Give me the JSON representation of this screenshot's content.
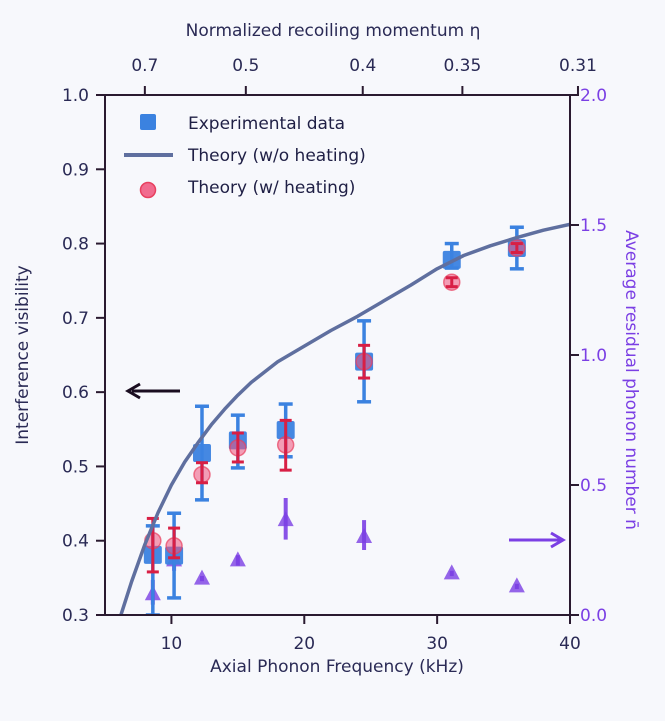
{
  "chart_data": {
    "type": "scatter",
    "title": "",
    "xlabel": "Axial Phonon Frequency (kHz)",
    "ylabel": "Interference visibility",
    "ylabel_right": "Average residual phonon number n̄",
    "xlabel_top": "Normalized recoiling momentum η",
    "xlim": [
      5,
      40
    ],
    "ylim": [
      0.3,
      1.0
    ],
    "ylim_right": [
      0.0,
      2.0
    ],
    "x_ticks": [
      10,
      20,
      30,
      40
    ],
    "x_tick_labels": [
      "10",
      "20",
      "30",
      "40"
    ],
    "y_ticks": [
      0.3,
      0.4,
      0.5,
      0.6,
      0.7,
      0.8,
      0.9,
      1.0
    ],
    "y_tick_labels": [
      "0.3",
      "0.4",
      "0.5",
      "0.6",
      "0.7",
      "0.8",
      "0.9",
      "1.0"
    ],
    "y_right_ticks": [
      0.0,
      0.5,
      1.0,
      1.5,
      2.0
    ],
    "y_right_tick_labels": [
      "0.0",
      "0.5",
      "1.0",
      "1.5",
      "2.0"
    ],
    "top_ticks": [
      {
        "label": "0.7",
        "x": 8.0
      },
      {
        "label": "0.5",
        "x": 15.6
      },
      {
        "label": "0.4",
        "x": 24.4
      },
      {
        "label": "0.35",
        "x": 31.9
      },
      {
        "label": "0.31",
        "x": 40.6
      }
    ],
    "grid": false,
    "legend_position": "top-left",
    "legend": [
      {
        "label": "Experimental data",
        "marker": "square",
        "color": "#3b82e0"
      },
      {
        "label": "Theory (w/o heating)",
        "marker": "line",
        "color": "#5f6f9f"
      },
      {
        "label": "Theory (w/ heating)",
        "marker": "circle",
        "color": "#f0527a"
      }
    ],
    "colors": {
      "experimental": "#3b82e0",
      "theory_line": "#5f6f9f",
      "theory_heating": "#e8405f",
      "theory_heating_err": "#d81f45",
      "phonon": "#7b3fe4",
      "axis": "#2a1a30",
      "left_arrow": "#1a0d20",
      "right_arrow": "#7b3fe4"
    },
    "series": [
      {
        "name": "Experimental data",
        "axis": "left",
        "x": [
          8.6,
          10.2,
          12.3,
          15.0,
          18.6,
          24.5,
          31.1,
          36.0
        ],
        "y": [
          0.381,
          0.38,
          0.518,
          0.535,
          0.549,
          0.641,
          0.778,
          0.794
        ],
        "yerr_low": [
          0.3,
          0.323,
          0.455,
          0.498,
          0.513,
          0.587,
          0.767,
          0.766
        ],
        "yerr_high": [
          0.42,
          0.437,
          0.581,
          0.569,
          0.584,
          0.696,
          0.8,
          0.822
        ]
      },
      {
        "name": "Theory (w/ heating)",
        "axis": "left",
        "x": [
          8.6,
          10.2,
          12.3,
          15.0,
          18.6,
          24.5,
          31.1,
          36.0
        ],
        "y": [
          0.4,
          0.393,
          0.489,
          0.525,
          0.529,
          0.641,
          0.748,
          0.794
        ],
        "yerr_low": [
          0.358,
          0.377,
          0.478,
          0.506,
          0.495,
          0.619,
          0.742,
          0.788
        ],
        "yerr_high": [
          0.43,
          0.417,
          0.505,
          0.545,
          0.562,
          0.663,
          0.754,
          0.8
        ]
      },
      {
        "name": "Average residual phonon number",
        "axis": "right",
        "marker": "triangle",
        "x": [
          8.6,
          10.2,
          12.3,
          15.0,
          18.6,
          24.5,
          31.1,
          36.0
        ],
        "y": [
          0.08,
          0.21,
          0.14,
          0.21,
          0.365,
          0.3,
          0.16,
          0.11
        ],
        "yerr_low": [
          0.04,
          0.17,
          0.13,
          0.19,
          0.29,
          0.25,
          0.15,
          0.1
        ],
        "yerr_high": [
          0.135,
          0.25,
          0.15,
          0.23,
          0.45,
          0.365,
          0.17,
          0.12
        ]
      }
    ],
    "theory_curve": {
      "name": "Theory (w/o heating)",
      "x": [
        6.2,
        7,
        8,
        9,
        10,
        11,
        12,
        13,
        14,
        15,
        16,
        18,
        20,
        22,
        24,
        26,
        28,
        30,
        32,
        34,
        36,
        38,
        40
      ],
      "y": [
        0.3,
        0.345,
        0.395,
        0.438,
        0.475,
        0.506,
        0.532,
        0.556,
        0.577,
        0.596,
        0.613,
        0.641,
        0.662,
        0.683,
        0.702,
        0.723,
        0.744,
        0.766,
        0.784,
        0.797,
        0.808,
        0.818,
        0.826
      ]
    },
    "annotations": [
      {
        "type": "arrow",
        "direction": "left",
        "meaning": "left axis",
        "x": 10.5,
        "y": 0.6
      },
      {
        "type": "arrow",
        "direction": "right",
        "meaning": "right axis",
        "x": 37.5,
        "y_right": 0.29
      }
    ]
  }
}
